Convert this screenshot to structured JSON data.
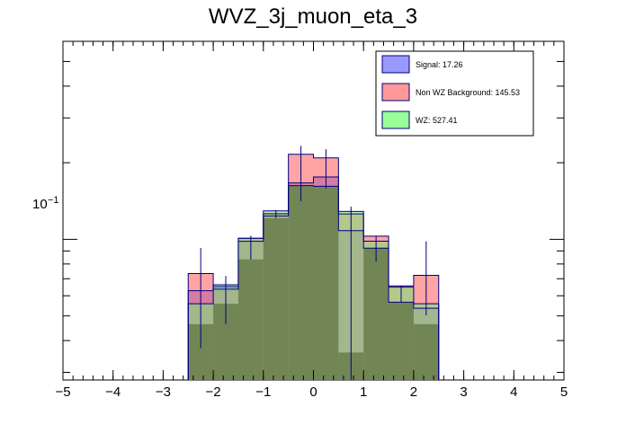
{
  "chart_data": {
    "type": "bar",
    "title": "WVZ_3j_muon_eta_3",
    "xlabel": "",
    "ylabel": "",
    "xlim": [
      -5,
      5
    ],
    "y_scale": "log",
    "ylim": [
      0.028,
      0.6
    ],
    "x_ticks": [
      "−5",
      "−4",
      "−3",
      "−2",
      "−1",
      "0",
      "1",
      "2",
      "3",
      "4",
      "5"
    ],
    "y_tick_label": "10",
    "y_tick_exponent": "−1",
    "bin_edges": [
      -2.5,
      -2.0,
      -1.5,
      -1.0,
      -0.5,
      0.0,
      0.5,
      1.0,
      1.5,
      2.0,
      2.5
    ],
    "series": [
      {
        "name": "Signal: 17.26",
        "color": "#9999ff",
        "values": [
          0.0628,
          0.0652,
          0.0982,
          0.1236,
          0.1666,
          0.1758,
          0.1082,
          0.0923,
          0.0566,
          0.0536
        ]
      },
      {
        "name": "Non WZ Background: 145.53",
        "color": "#ff9999",
        "values": [
          0.0734,
          0.0637,
          0.1009,
          0.1261,
          0.2158,
          0.2089,
          0.1258,
          0.1029,
          0.0656,
          0.0722
        ]
      },
      {
        "name": "WZ: 527.41",
        "color": "#99ff99",
        "values": [
          0.0558,
          0.0663,
          0.1009,
          0.1294,
          0.1625,
          0.1616,
          0.1287,
          0.0983,
          0.0649,
          0.0558
        ]
      }
    ],
    "overlay_values": [
      0.0464,
      0.0558,
      0.0834,
      0.1212,
      0.1625,
      0.1616,
      0.0359,
      0.0923,
      0.0566,
      0.0464
    ],
    "error_bars": [
      [
        0.0373,
        0.0924
      ],
      [
        0.0464,
        0.0718
      ],
      [
        0.0834,
        0.1033
      ],
      [
        0.1212,
        0.1303
      ],
      [
        0.1413,
        0.233
      ],
      [
        0.1584,
        0.226
      ],
      [
        0.028,
        0.1343
      ],
      [
        0.0817,
        0.1033
      ],
      [
        0.0566,
        0.0656
      ],
      [
        0.0503,
        0.0982
      ]
    ],
    "legend_position": "top-right",
    "grid": false
  }
}
